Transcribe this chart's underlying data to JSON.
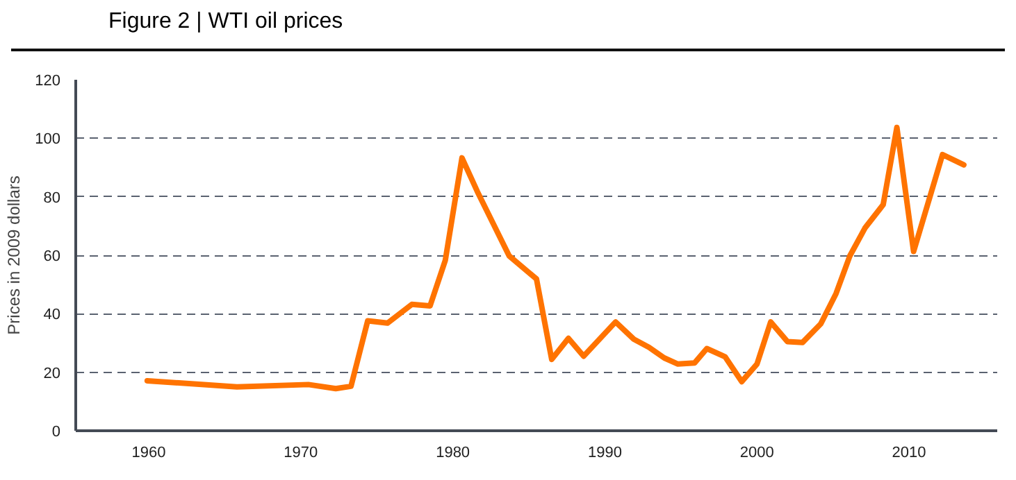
{
  "chart_data": {
    "type": "line",
    "title": "Figure 2 | WTI oil prices",
    "ylabel": "Prices in 2009 dollars",
    "xlim": [
      1955.2,
      2015.8
    ],
    "xticks": [
      1960,
      1970,
      1980,
      1990,
      2000,
      2010
    ],
    "ylim": [
      0,
      120
    ],
    "yticks": [
      0,
      20,
      40,
      60,
      80,
      100,
      120
    ],
    "grid": "y",
    "marker": "none",
    "line_style": "solid",
    "series": [
      {
        "color": "#ff7300",
        "x": [
          1959.9,
          1965.8,
          1970.5,
          1972.3,
          1973.3,
          1974.4,
          1975.7,
          1977.3,
          1978.5,
          1979.5,
          1980.6,
          1981.6,
          1983.7,
          1985.5,
          1986.5,
          1987.6,
          1988.6,
          1990.7,
          1991.9,
          1992.9,
          1993.9,
          1994.8,
          1995.9,
          1996.7,
          1997.9,
          1999.0,
          2000.0,
          2000.9,
          2002.0,
          2003.0,
          2004.2,
          2005.2,
          2006.1,
          2007.1,
          2008.3,
          2009.2,
          2010.3,
          2012.2,
          2013.6
        ],
        "values": [
          17.1,
          15.0,
          15.8,
          14.4,
          15.2,
          37.6,
          36.8,
          43.2,
          42.7,
          58.2,
          93.3,
          81.9,
          59.8,
          51.9,
          24.4,
          31.6,
          25.5,
          37.2,
          31.3,
          28.5,
          24.9,
          22.8,
          23.2,
          28.1,
          25.3,
          16.8,
          22.8,
          37.2,
          30.5,
          30.2,
          36.6,
          46.9,
          59.7,
          69.3,
          77.3,
          103.7,
          61.3,
          94.4,
          90.9
        ]
      }
    ]
  }
}
